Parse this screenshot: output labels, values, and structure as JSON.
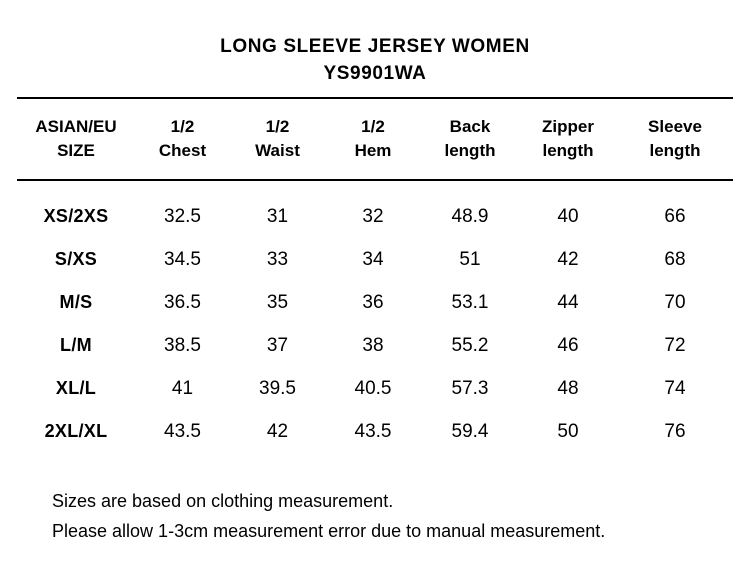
{
  "title": {
    "line1": "LONG SLEEVE JERSEY WOMEN",
    "line2": "YS9901WA"
  },
  "table": {
    "columns": [
      {
        "line1": "ASIAN/EU",
        "line2": "SIZE"
      },
      {
        "line1": "1/2",
        "line2": "Chest"
      },
      {
        "line1": "1/2",
        "line2": "Waist"
      },
      {
        "line1": "1/2",
        "line2": "Hem"
      },
      {
        "line1": "Back",
        "line2": "length"
      },
      {
        "line1": "Zipper",
        "line2": "length"
      },
      {
        "line1": "Sleeve",
        "line2": "length"
      }
    ],
    "rows": [
      {
        "size": "XS/2XS",
        "values": [
          "32.5",
          "31",
          "32",
          "48.9",
          "40",
          "66"
        ]
      },
      {
        "size": "S/XS",
        "values": [
          "34.5",
          "33",
          "34",
          "51",
          "42",
          "68"
        ]
      },
      {
        "size": "M/S",
        "values": [
          "36.5",
          "35",
          "36",
          "53.1",
          "44",
          "70"
        ]
      },
      {
        "size": "L/M",
        "values": [
          "38.5",
          "37",
          "38",
          "55.2",
          "46",
          "72"
        ]
      },
      {
        "size": "XL/L",
        "values": [
          "41",
          "39.5",
          "40.5",
          "57.3",
          "48",
          "74"
        ]
      },
      {
        "size": "2XL/XL",
        "values": [
          "43.5",
          "42",
          "43.5",
          "59.4",
          "50",
          "76"
        ]
      }
    ]
  },
  "notes": [
    "Sizes are based on clothing measurement.",
    "Please allow 1-3cm measurement error due to manual measurement."
  ],
  "colors": {
    "background": "#ffffff",
    "text": "#000000",
    "rule": "#000000"
  }
}
